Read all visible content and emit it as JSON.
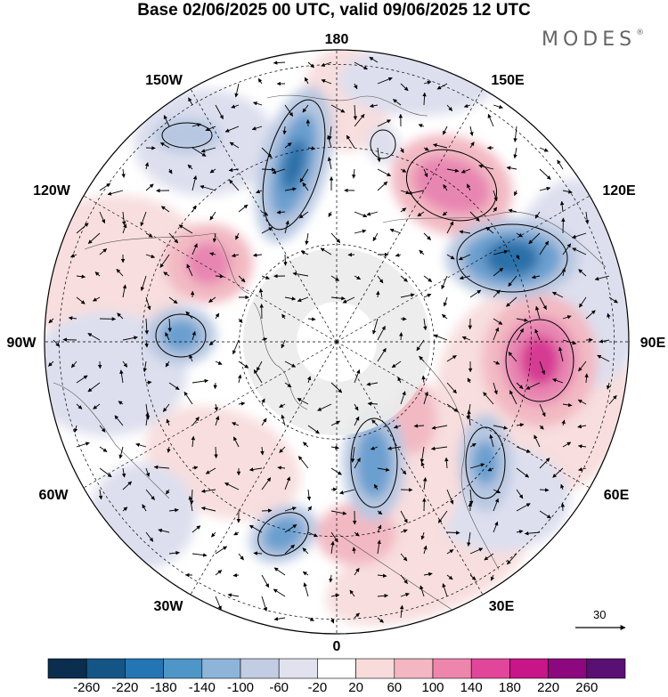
{
  "title": "Base 02/06/2025 00 UTC, valid 09/06/2025 12 UTC",
  "brand": {
    "name": "MODES",
    "mark": "®"
  },
  "longitude_labels": {
    "top": "180",
    "bottom": "0",
    "left": "90W",
    "right": "90E",
    "upper_left_1": "150W",
    "upper_left_2": "120W",
    "upper_right_1": "150E",
    "upper_right_2": "120E",
    "lower_left_1": "60W",
    "lower_left_2": "30W",
    "lower_right_1": "60E",
    "lower_right_2": "30E"
  },
  "reference_vector": {
    "value": "30"
  },
  "colorbar": {
    "colors": [
      "#0b2d4e",
      "#155586",
      "#2375b3",
      "#4e96c7",
      "#8eb4da",
      "#c2cde4",
      "#e2e2ef",
      "#ffffff",
      "#f9dbdb",
      "#f4b6c0",
      "#ee85ad",
      "#e2469a",
      "#c8158a",
      "#8d087e",
      "#5a0f72"
    ],
    "tick_labels": [
      "-260",
      "-220",
      "-180",
      "-140",
      "-100",
      "-60",
      "-20",
      "20",
      "60",
      "100",
      "140",
      "180",
      "220",
      "260"
    ]
  },
  "anomaly_palette": {
    "neg_strong": "#2b6fa9",
    "neg_mid": "#6b9fcf",
    "neg_light": "#b7c7e1",
    "neg_faint": "#dddfee",
    "pos_faint": "#f8dede",
    "pos_light": "#f2b9c3",
    "pos_mid": "#e886b2",
    "pos_strong": "#d63b93",
    "polar_gray": "#ebebeb"
  }
}
